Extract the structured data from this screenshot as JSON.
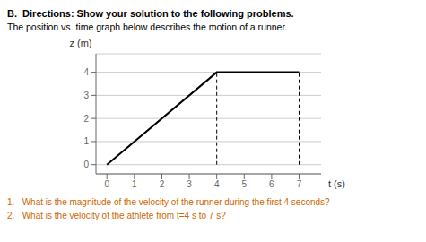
{
  "chart_data": {
    "type": "line",
    "title": "B.  Directions: Show your solution to the following problems.",
    "subtitle": "The position vs. time graph below describes the motion of a runner.",
    "x_label": "t (s)",
    "y_label": "z (m)",
    "xlim": [
      -0.4,
      7.8
    ],
    "ylim": [
      -0.4,
      4.8
    ],
    "xticks": [
      0,
      1,
      2,
      3,
      4,
      5,
      6,
      7
    ],
    "yticks": [
      0,
      1,
      2,
      3,
      4
    ],
    "grid": true,
    "series": [
      {
        "x": [
          0,
          4,
          7
        ],
        "values": [
          0,
          4,
          4
        ],
        "color": "#000000",
        "line_style": "solid"
      },
      {
        "x": [
          4,
          4
        ],
        "values": [
          0,
          4
        ],
        "color": "#000000",
        "line_style": "dashed"
      },
      {
        "x": [
          7,
          7
        ],
        "values": [
          0,
          4
        ],
        "color": "#000000",
        "line_style": "dashed"
      }
    ],
    "annotations": [
      {
        "text": "1.   What is the magnitude of the velocity of the runner during the first 4 seconds?",
        "color": "#cc6600"
      },
      {
        "text": "2.   What is the velocity of the athlete from t=4 s to 7 s?",
        "color": "#cc6600"
      }
    ]
  }
}
